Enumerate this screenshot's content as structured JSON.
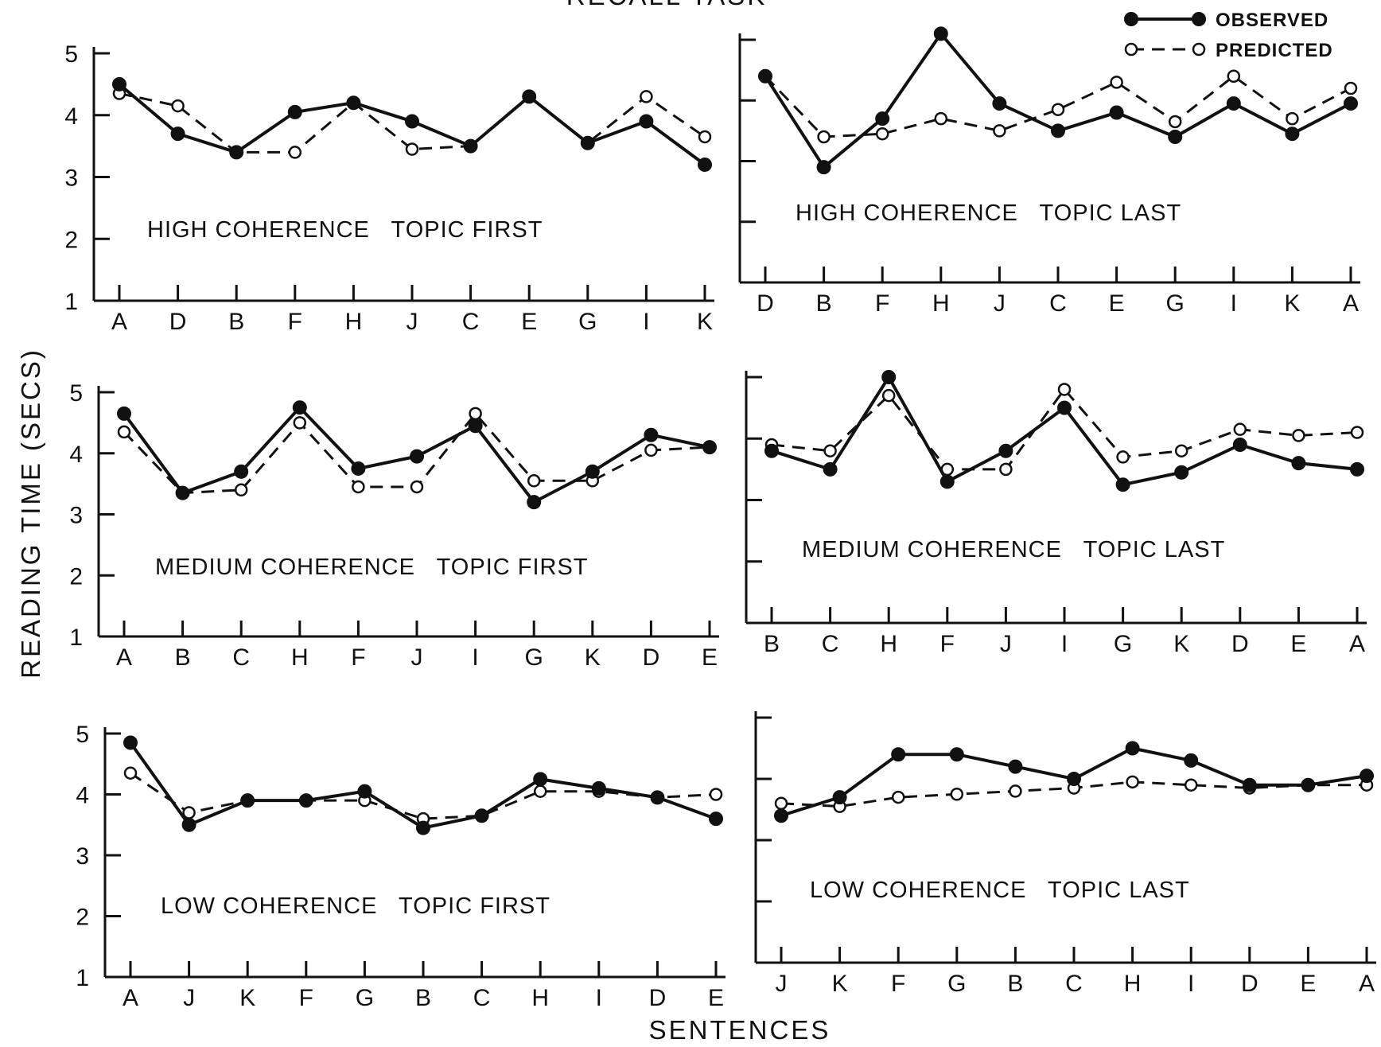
{
  "figure": {
    "title": "RECALL TASK",
    "ylabel": "READING TIME (SECS)",
    "xlabel": "SENTENCES",
    "legend": {
      "observed": "OBSERVED",
      "predicted": "PREDICTED"
    }
  },
  "chart_data": [
    {
      "type": "line",
      "label": "HIGH COHERENCE   TOPIC FIRST",
      "categories": [
        "A",
        "D",
        "B",
        "F",
        "H",
        "J",
        "C",
        "E",
        "G",
        "I",
        "K"
      ],
      "ylim": [
        1,
        5
      ],
      "yticks": [
        "1",
        "2",
        "3",
        "4",
        "5"
      ],
      "series": [
        {
          "name": "OBSERVED",
          "values": [
            4.5,
            3.7,
            3.4,
            4.05,
            4.2,
            3.9,
            3.5,
            4.3,
            3.55,
            3.9,
            3.2
          ]
        },
        {
          "name": "PREDICTED",
          "values": [
            4.35,
            4.15,
            3.4,
            3.4,
            4.2,
            3.45,
            3.5,
            4.3,
            3.55,
            4.3,
            3.65
          ]
        }
      ]
    },
    {
      "type": "line",
      "label": "HIGH COHERENCE   TOPIC LAST",
      "categories": [
        "D",
        "B",
        "F",
        "H",
        "J",
        "C",
        "E",
        "G",
        "I",
        "K",
        "A"
      ],
      "ylim": [
        1,
        5
      ],
      "yticks": [
        "",
        "",
        "",
        "",
        ""
      ],
      "series": [
        {
          "name": "OBSERVED",
          "values": [
            4.4,
            2.9,
            3.7,
            5.1,
            3.95,
            3.5,
            3.8,
            3.4,
            3.95,
            3.45,
            3.95
          ]
        },
        {
          "name": "PREDICTED",
          "values": [
            4.4,
            3.4,
            3.45,
            3.7,
            3.5,
            3.85,
            4.3,
            3.65,
            4.4,
            3.7,
            4.2
          ]
        }
      ]
    },
    {
      "type": "line",
      "label": "MEDIUM COHERENCE   TOPIC FIRST",
      "categories": [
        "A",
        "B",
        "C",
        "H",
        "F",
        "J",
        "I",
        "G",
        "K",
        "D",
        "E"
      ],
      "ylim": [
        1,
        5
      ],
      "yticks": [
        "1",
        "2",
        "3",
        "4",
        "5"
      ],
      "series": [
        {
          "name": "OBSERVED",
          "values": [
            4.65,
            3.35,
            3.7,
            4.75,
            3.75,
            3.95,
            4.45,
            3.2,
            3.7,
            4.3,
            4.1
          ]
        },
        {
          "name": "PREDICTED",
          "values": [
            4.35,
            3.35,
            3.4,
            4.5,
            3.45,
            3.45,
            4.65,
            3.55,
            3.55,
            4.05,
            4.1
          ]
        }
      ]
    },
    {
      "type": "line",
      "label": "MEDIUM COHERENCE   TOPIC LAST",
      "categories": [
        "B",
        "C",
        "H",
        "F",
        "J",
        "I",
        "G",
        "K",
        "D",
        "E",
        "A"
      ],
      "ylim": [
        1,
        5
      ],
      "yticks": [
        "",
        "",
        "",
        "",
        ""
      ],
      "series": [
        {
          "name": "OBSERVED",
          "values": [
            3.8,
            3.5,
            5.0,
            3.3,
            3.8,
            4.5,
            3.25,
            3.45,
            3.9,
            3.6,
            3.5
          ]
        },
        {
          "name": "PREDICTED",
          "values": [
            3.9,
            3.8,
            4.7,
            3.5,
            3.5,
            4.8,
            3.7,
            3.8,
            4.15,
            4.05,
            4.1
          ]
        }
      ]
    },
    {
      "type": "line",
      "label": "LOW COHERENCE   TOPIC FIRST",
      "categories": [
        "A",
        "J",
        "K",
        "F",
        "G",
        "B",
        "C",
        "H",
        "I",
        "D",
        "E"
      ],
      "ylim": [
        1,
        5
      ],
      "yticks": [
        "1",
        "2",
        "3",
        "4",
        "5"
      ],
      "series": [
        {
          "name": "OBSERVED",
          "values": [
            4.85,
            3.5,
            3.9,
            3.9,
            4.05,
            3.45,
            3.65,
            4.25,
            4.1,
            3.95,
            3.6
          ]
        },
        {
          "name": "PREDICTED",
          "values": [
            4.35,
            3.7,
            3.9,
            3.9,
            3.9,
            3.6,
            3.65,
            4.05,
            4.05,
            3.95,
            4.0
          ]
        }
      ]
    },
    {
      "type": "line",
      "label": "LOW COHERENCE   TOPIC LAST",
      "categories": [
        "J",
        "K",
        "F",
        "G",
        "B",
        "C",
        "H",
        "I",
        "D",
        "E",
        "A"
      ],
      "ylim": [
        1,
        5
      ],
      "yticks": [
        "",
        "",
        "",
        "",
        ""
      ],
      "series": [
        {
          "name": "OBSERVED",
          "values": [
            3.4,
            3.7,
            4.4,
            4.4,
            4.2,
            4.0,
            4.5,
            4.3,
            3.9,
            3.9,
            4.05
          ]
        },
        {
          "name": "PREDICTED",
          "values": [
            3.6,
            3.55,
            3.7,
            3.75,
            3.8,
            3.85,
            3.95,
            3.9,
            3.85,
            3.9,
            3.9
          ]
        }
      ]
    }
  ]
}
